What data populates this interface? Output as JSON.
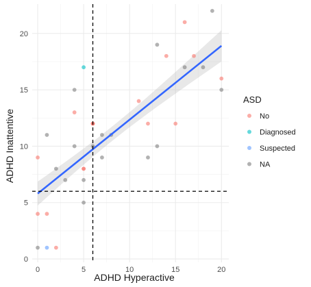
{
  "chart_data": {
    "type": "scatter",
    "xlabel": "ADHD Hyperactive",
    "ylabel": "ADHD Inattentive",
    "xlim": [
      -0.6,
      20.8
    ],
    "ylim": [
      -0.3,
      22.6
    ],
    "x_ticks": [
      0,
      5,
      10,
      15,
      20
    ],
    "y_ticks": [
      0,
      5,
      10,
      15,
      20
    ],
    "grid": true,
    "legend_title": "ASD",
    "legend_position": "right",
    "series": [
      {
        "name": "No",
        "color": "#F8766D",
        "points": [
          [
            0,
            9
          ],
          [
            0,
            4
          ],
          [
            1,
            4
          ],
          [
            2,
            1
          ],
          [
            4,
            13
          ],
          [
            5,
            8
          ],
          [
            5,
            8
          ],
          [
            6,
            12
          ],
          [
            6,
            12
          ],
          [
            6,
            12
          ],
          [
            11,
            14
          ],
          [
            12,
            12
          ],
          [
            14,
            18
          ],
          [
            15,
            12
          ],
          [
            16,
            21
          ],
          [
            17,
            18
          ],
          [
            20,
            16
          ]
        ]
      },
      {
        "name": "Diagnosed",
        "color": "#00BFC4",
        "points": [
          [
            5,
            17
          ]
        ]
      },
      {
        "name": "Suspected",
        "color": "#619CFF",
        "points": [
          [
            1,
            1
          ]
        ]
      },
      {
        "name": "NA",
        "color": "#7F7F7F",
        "points": [
          [
            0,
            1
          ],
          [
            1,
            11
          ],
          [
            2,
            8
          ],
          [
            3,
            7
          ],
          [
            4,
            15
          ],
          [
            4,
            10
          ],
          [
            5,
            7
          ],
          [
            5,
            5
          ],
          [
            6,
            10
          ],
          [
            7,
            9
          ],
          [
            7,
            11
          ],
          [
            8,
            11
          ],
          [
            12,
            9
          ],
          [
            13,
            10
          ],
          [
            13,
            19
          ],
          [
            16,
            17
          ],
          [
            18,
            17
          ],
          [
            19,
            22
          ],
          [
            20,
            15
          ]
        ]
      }
    ],
    "reference_lines": {
      "vertical_x": 6,
      "horizontal_y": 6
    },
    "regression": {
      "intercept": 5.8,
      "slope": 0.655,
      "x_range": [
        0,
        20
      ],
      "color": "#3366FF",
      "ci_color": "#bdbdbd"
    }
  }
}
